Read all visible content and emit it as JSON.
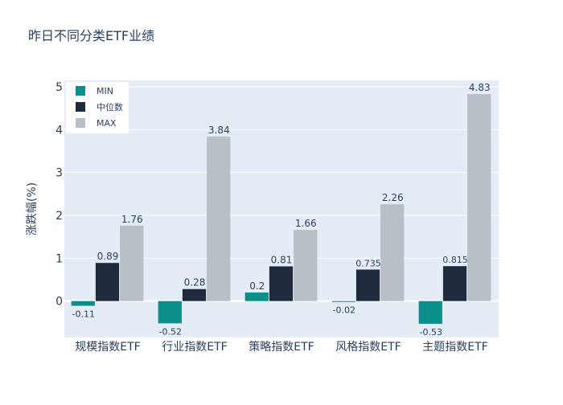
{
  "chart_data": {
    "type": "bar",
    "title": "昨日不同分类ETF业绩",
    "xlabel": "",
    "ylabel": "涨跌幅(%)",
    "ylim": [
      -0.85,
      5.15
    ],
    "yticks": [
      0,
      1,
      2,
      3,
      4,
      5
    ],
    "categories": [
      "规模指数ETF",
      "行业指数ETF",
      "策略指数ETF",
      "风格指数ETF",
      "主题指数ETF"
    ],
    "series": [
      {
        "name": "MIN",
        "color": "#0a8f8a",
        "values": [
          -0.11,
          -0.52,
          0.2,
          -0.02,
          -0.53
        ],
        "labels": [
          "-0.11",
          "-0.52",
          "0.2",
          "-0.02",
          "-0.53"
        ]
      },
      {
        "name": "中位数",
        "color": "#1f2a3c",
        "values": [
          0.89,
          0.28,
          0.81,
          0.735,
          0.815
        ],
        "labels": [
          "0.89",
          "0.28",
          "0.81",
          "0.735",
          "0.815"
        ]
      },
      {
        "name": "MAX",
        "color": "#b8bfc7",
        "values": [
          1.76,
          3.84,
          1.66,
          2.26,
          4.83
        ],
        "labels": [
          "1.76",
          "3.84",
          "1.66",
          "2.26",
          "4.83"
        ]
      }
    ],
    "legend_position": "top-left",
    "grid": true
  }
}
